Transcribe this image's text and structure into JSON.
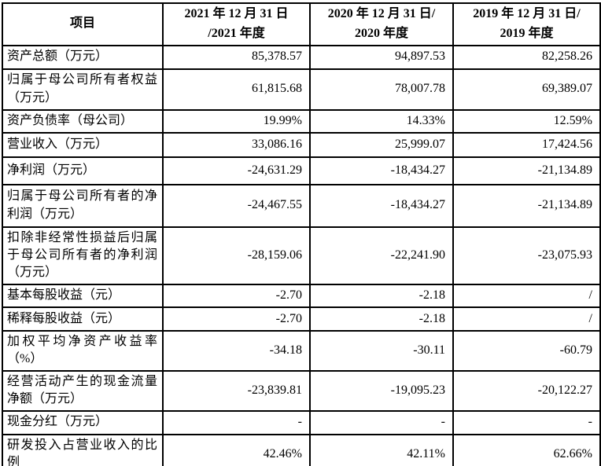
{
  "table": {
    "header": [
      "项目",
      "2021 年 12 月 31 日\n/2021 年度",
      "2020 年 12 月 31 日/\n2020 年度",
      "2019 年 12 月 31 日/\n2019 年度"
    ],
    "rows": [
      {
        "label": "资产总额（万元）",
        "values": [
          "85,378.57",
          "94,897.53",
          "82,258.26"
        ]
      },
      {
        "label": "归属于母公司所有者权益（万元）",
        "values": [
          "61,815.68",
          "78,007.78",
          "69,389.07"
        ]
      },
      {
        "label": "资产负债率（母公司）",
        "values": [
          "19.99%",
          "14.33%",
          "12.59%"
        ]
      },
      {
        "label": "营业收入（万元）",
        "values": [
          "33,086.16",
          "25,999.07",
          "17,424.56"
        ]
      },
      {
        "label": "净利润（万元）",
        "values": [
          "-24,631.29",
          "-18,434.27",
          "-21,134.89"
        ]
      },
      {
        "label": "归属于母公司所有者的净利润（万元）",
        "values": [
          "-24,467.55",
          "-18,434.27",
          "-21,134.89"
        ]
      },
      {
        "label": "扣除非经常性损益后归属于母公司所有者的净利润（万元）",
        "values": [
          "-28,159.06",
          "-22,241.90",
          "-23,075.93"
        ]
      },
      {
        "label": "基本每股收益（元）",
        "values": [
          "-2.70",
          "-2.18",
          "/"
        ]
      },
      {
        "label": "稀释每股收益（元）",
        "values": [
          "-2.70",
          "-2.18",
          "/"
        ]
      },
      {
        "label": "加权平均净资产收益率（%）",
        "values": [
          "-34.18",
          "-30.11",
          "-60.79"
        ]
      },
      {
        "label": "经营活动产生的现金流量净额（万元）",
        "values": [
          "-23,839.81",
          "-19,095.23",
          "-20,122.27"
        ]
      },
      {
        "label": "现金分红（万元）",
        "values": [
          "-",
          "-",
          "-"
        ]
      },
      {
        "label": "研发投入占营业收入的比例",
        "values": [
          "42.46%",
          "42.11%",
          "62.66%"
        ]
      }
    ],
    "colors": {
      "border": "#000000",
      "text": "#000000",
      "background": "#ffffff"
    }
  }
}
